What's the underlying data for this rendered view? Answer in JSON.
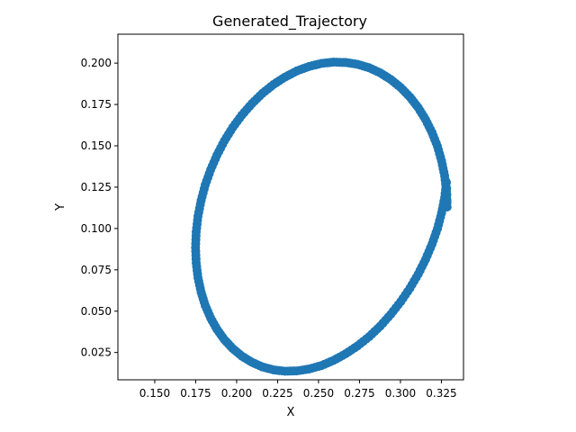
{
  "chart_data": {
    "type": "scatter",
    "title": "Generated_Trajectory",
    "xlabel": "X",
    "ylabel": "Y",
    "xlim": [
      0.1275,
      0.3385
    ],
    "ylim": [
      0.0085,
      0.2175
    ],
    "x_ticks": [
      "0.150",
      "0.175",
      "0.200",
      "0.225",
      "0.250",
      "0.275",
      "0.300",
      "0.325"
    ],
    "y_ticks": [
      "0.025",
      "0.050",
      "0.075",
      "0.100",
      "0.125",
      "0.150",
      "0.175",
      "0.200"
    ],
    "x_tick_values": [
      0.15,
      0.175,
      0.2,
      0.225,
      0.25,
      0.275,
      0.3,
      0.325
    ],
    "y_tick_values": [
      0.025,
      0.05,
      0.075,
      0.1,
      0.125,
      0.15,
      0.175,
      0.2
    ],
    "grid": false,
    "marker_color": "#1f77b4",
    "series": [
      {
        "x": [
          0.3285,
          0.3281,
          0.327,
          0.3251,
          0.3226,
          0.3193,
          0.3154,
          0.3109,
          0.3058,
          0.3002,
          0.2941,
          0.2877,
          0.2809,
          0.2738,
          0.2665,
          0.2591,
          0.2517,
          0.2442,
          0.2368,
          0.2296,
          0.2225,
          0.2157,
          0.2093,
          0.2032,
          0.1976,
          0.1925,
          0.188,
          0.1841,
          0.1808,
          0.1783,
          0.1764,
          0.1753,
          0.1749,
          0.1753,
          0.1764,
          0.1783,
          0.1808,
          0.1841,
          0.188,
          0.1925,
          0.1976,
          0.2032,
          0.2093,
          0.2157,
          0.2225,
          0.2296,
          0.2368,
          0.2442,
          0.2517,
          0.2591,
          0.2665,
          0.2738,
          0.2809,
          0.2877,
          0.2941,
          0.3002,
          0.3058,
          0.3109,
          0.3154,
          0.3193,
          0.3226,
          0.3251,
          0.327,
          0.3281
        ],
        "y": [
          0.113,
          0.1225,
          0.1318,
          0.1409,
          0.1497,
          0.158,
          0.1658,
          0.173,
          0.1795,
          0.1852,
          0.1901,
          0.1941,
          0.1972,
          0.1993,
          0.2004,
          0.2006,
          0.1998,
          0.198,
          0.1953,
          0.1916,
          0.1871,
          0.1817,
          0.1755,
          0.1686,
          0.1611,
          0.153,
          0.1444,
          0.1355,
          0.1263,
          0.1169,
          0.1074,
          0.0979,
          0.0885,
          0.0792,
          0.0702,
          0.0616,
          0.0535,
          0.0459,
          0.039,
          0.0328,
          0.0274,
          0.0228,
          0.0191,
          0.0163,
          0.0145,
          0.0137,
          0.0139,
          0.015,
          0.0171,
          0.0202,
          0.0242,
          0.029,
          0.0346,
          0.041,
          0.0481,
          0.0558,
          0.0639,
          0.0725,
          0.0814,
          0.0906,
          0.0999,
          0.1093,
          0.1187,
          0.1279
        ],
        "note_shape": "closed loop"
      }
    ]
  }
}
